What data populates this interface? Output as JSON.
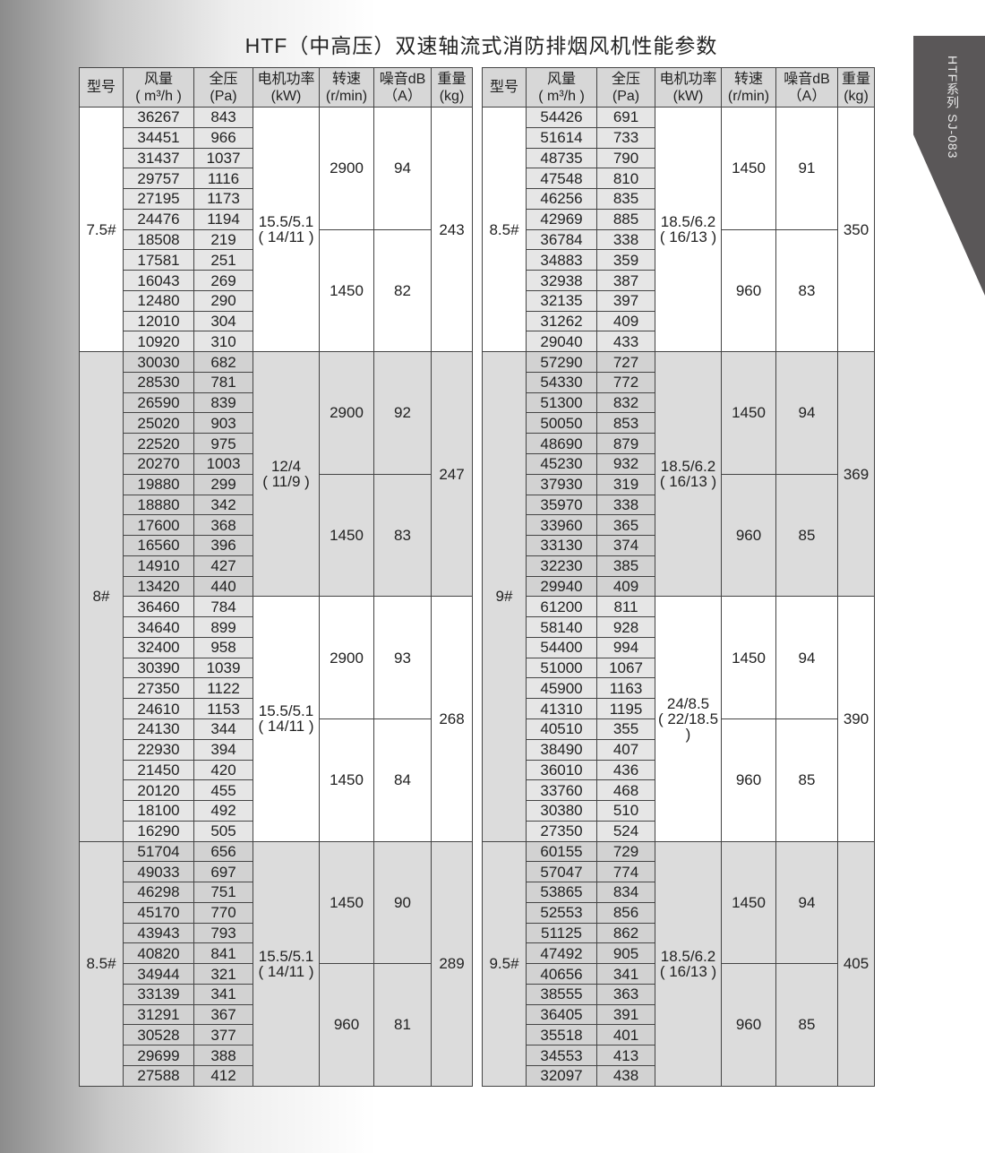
{
  "title": "HTF（中高压）双速轴流式消防排烟风机性能参数",
  "side_tab": "HTF系列  SJ-083",
  "headers": [
    "型号",
    "风量\n( m³/h )",
    "全压\n(Pa)",
    "电机功率\n(kW)",
    "转速\n(r/min)",
    "噪音dB\n（A）",
    "重量\n(kg)"
  ],
  "tables": [
    {
      "models": [
        {
          "label": "7.5#",
          "blocks": [
            {
              "power": "15.5/5.1\n( 14/11 )",
              "weight": "243",
              "speeds": [
                {
                  "speed": "2900",
                  "noise": "94"
                },
                {
                  "speed": "1450",
                  "noise": "82"
                }
              ],
              "rows": [
                [
                  "36267",
                  "843"
                ],
                [
                  "34451",
                  "966"
                ],
                [
                  "31437",
                  "1037"
                ],
                [
                  "29757",
                  "1116"
                ],
                [
                  "27195",
                  "1173"
                ],
                [
                  "24476",
                  "1194"
                ],
                [
                  "18508",
                  "219"
                ],
                [
                  "17581",
                  "251"
                ],
                [
                  "16043",
                  "269"
                ],
                [
                  "12480",
                  "290"
                ],
                [
                  "12010",
                  "304"
                ],
                [
                  "10920",
                  "310"
                ]
              ]
            }
          ]
        },
        {
          "label": "8#",
          "blocks": [
            {
              "power": "12/4\n( 11/9 )",
              "weight": "247",
              "shade": true,
              "speeds": [
                {
                  "speed": "2900",
                  "noise": "92"
                },
                {
                  "speed": "1450",
                  "noise": "83"
                }
              ],
              "rows": [
                [
                  "30030",
                  "682"
                ],
                [
                  "28530",
                  "781"
                ],
                [
                  "26590",
                  "839"
                ],
                [
                  "25020",
                  "903"
                ],
                [
                  "22520",
                  "975"
                ],
                [
                  "20270",
                  "1003"
                ],
                [
                  "19880",
                  "299"
                ],
                [
                  "18880",
                  "342"
                ],
                [
                  "17600",
                  "368"
                ],
                [
                  "16560",
                  "396"
                ],
                [
                  "14910",
                  "427"
                ],
                [
                  "13420",
                  "440"
                ]
              ]
            },
            {
              "power": "15.5/5.1\n( 14/11 )",
              "weight": "268",
              "speeds": [
                {
                  "speed": "2900",
                  "noise": "93"
                },
                {
                  "speed": "1450",
                  "noise": "84"
                }
              ],
              "rows": [
                [
                  "36460",
                  "784"
                ],
                [
                  "34640",
                  "899"
                ],
                [
                  "32400",
                  "958"
                ],
                [
                  "30390",
                  "1039"
                ],
                [
                  "27350",
                  "1122"
                ],
                [
                  "24610",
                  "1153"
                ],
                [
                  "24130",
                  "344"
                ],
                [
                  "22930",
                  "394"
                ],
                [
                  "21450",
                  "420"
                ],
                [
                  "20120",
                  "455"
                ],
                [
                  "18100",
                  "492"
                ],
                [
                  "16290",
                  "505"
                ]
              ]
            }
          ]
        },
        {
          "label": "8.5#",
          "blocks": [
            {
              "power": "15.5/5.1\n( 14/11 )",
              "weight": "289",
              "shade": true,
              "speeds": [
                {
                  "speed": "1450",
                  "noise": "90"
                },
                {
                  "speed": "960",
                  "noise": "81"
                }
              ],
              "rows": [
                [
                  "51704",
                  "656"
                ],
                [
                  "49033",
                  "697"
                ],
                [
                  "46298",
                  "751"
                ],
                [
                  "45170",
                  "770"
                ],
                [
                  "43943",
                  "793"
                ],
                [
                  "40820",
                  "841"
                ],
                [
                  "34944",
                  "321"
                ],
                [
                  "33139",
                  "341"
                ],
                [
                  "31291",
                  "367"
                ],
                [
                  "30528",
                  "377"
                ],
                [
                  "29699",
                  "388"
                ],
                [
                  "27588",
                  "412"
                ]
              ]
            }
          ]
        }
      ]
    },
    {
      "models": [
        {
          "label": "8.5#",
          "blocks": [
            {
              "power": "18.5/6.2\n( 16/13 )",
              "weight": "350",
              "speeds": [
                {
                  "speed": "1450",
                  "noise": "91"
                },
                {
                  "speed": "960",
                  "noise": "83"
                }
              ],
              "rows": [
                [
                  "54426",
                  "691"
                ],
                [
                  "51614",
                  "733"
                ],
                [
                  "48735",
                  "790"
                ],
                [
                  "47548",
                  "810"
                ],
                [
                  "46256",
                  "835"
                ],
                [
                  "42969",
                  "885"
                ],
                [
                  "36784",
                  "338"
                ],
                [
                  "34883",
                  "359"
                ],
                [
                  "32938",
                  "387"
                ],
                [
                  "32135",
                  "397"
                ],
                [
                  "31262",
                  "409"
                ],
                [
                  "29040",
                  "433"
                ]
              ]
            }
          ]
        },
        {
          "label": "9#",
          "blocks": [
            {
              "power": "18.5/6.2\n( 16/13 )",
              "weight": "369",
              "shade": true,
              "speeds": [
                {
                  "speed": "1450",
                  "noise": "94"
                },
                {
                  "speed": "960",
                  "noise": "85"
                }
              ],
              "rows": [
                [
                  "57290",
                  "727"
                ],
                [
                  "54330",
                  "772"
                ],
                [
                  "51300",
                  "832"
                ],
                [
                  "50050",
                  "853"
                ],
                [
                  "48690",
                  "879"
                ],
                [
                  "45230",
                  "932"
                ],
                [
                  "37930",
                  "319"
                ],
                [
                  "35970",
                  "338"
                ],
                [
                  "33960",
                  "365"
                ],
                [
                  "33130",
                  "374"
                ],
                [
                  "32230",
                  "385"
                ],
                [
                  "29940",
                  "409"
                ]
              ]
            },
            {
              "power": "24/8.5\n( 22/18.5 )",
              "weight": "390",
              "speeds": [
                {
                  "speed": "1450",
                  "noise": "94"
                },
                {
                  "speed": "960",
                  "noise": "85"
                }
              ],
              "rows": [
                [
                  "61200",
                  "811"
                ],
                [
                  "58140",
                  "928"
                ],
                [
                  "54400",
                  "994"
                ],
                [
                  "51000",
                  "1067"
                ],
                [
                  "45900",
                  "1163"
                ],
                [
                  "41310",
                  "1195"
                ],
                [
                  "40510",
                  "355"
                ],
                [
                  "38490",
                  "407"
                ],
                [
                  "36010",
                  "436"
                ],
                [
                  "33760",
                  "468"
                ],
                [
                  "30380",
                  "510"
                ],
                [
                  "27350",
                  "524"
                ]
              ]
            }
          ]
        },
        {
          "label": "9.5#",
          "blocks": [
            {
              "power": "18.5/6.2\n( 16/13 )",
              "weight": "405",
              "shade": true,
              "speeds": [
                {
                  "speed": "1450",
                  "noise": "94"
                },
                {
                  "speed": "960",
                  "noise": "85"
                }
              ],
              "rows": [
                [
                  "60155",
                  "729"
                ],
                [
                  "57047",
                  "774"
                ],
                [
                  "53865",
                  "834"
                ],
                [
                  "52553",
                  "856"
                ],
                [
                  "51125",
                  "862"
                ],
                [
                  "47492",
                  "905"
                ],
                [
                  "40656",
                  "341"
                ],
                [
                  "38555",
                  "363"
                ],
                [
                  "36405",
                  "391"
                ],
                [
                  "35518",
                  "401"
                ],
                [
                  "34553",
                  "413"
                ],
                [
                  "32097",
                  "438"
                ]
              ]
            }
          ]
        }
      ]
    }
  ]
}
